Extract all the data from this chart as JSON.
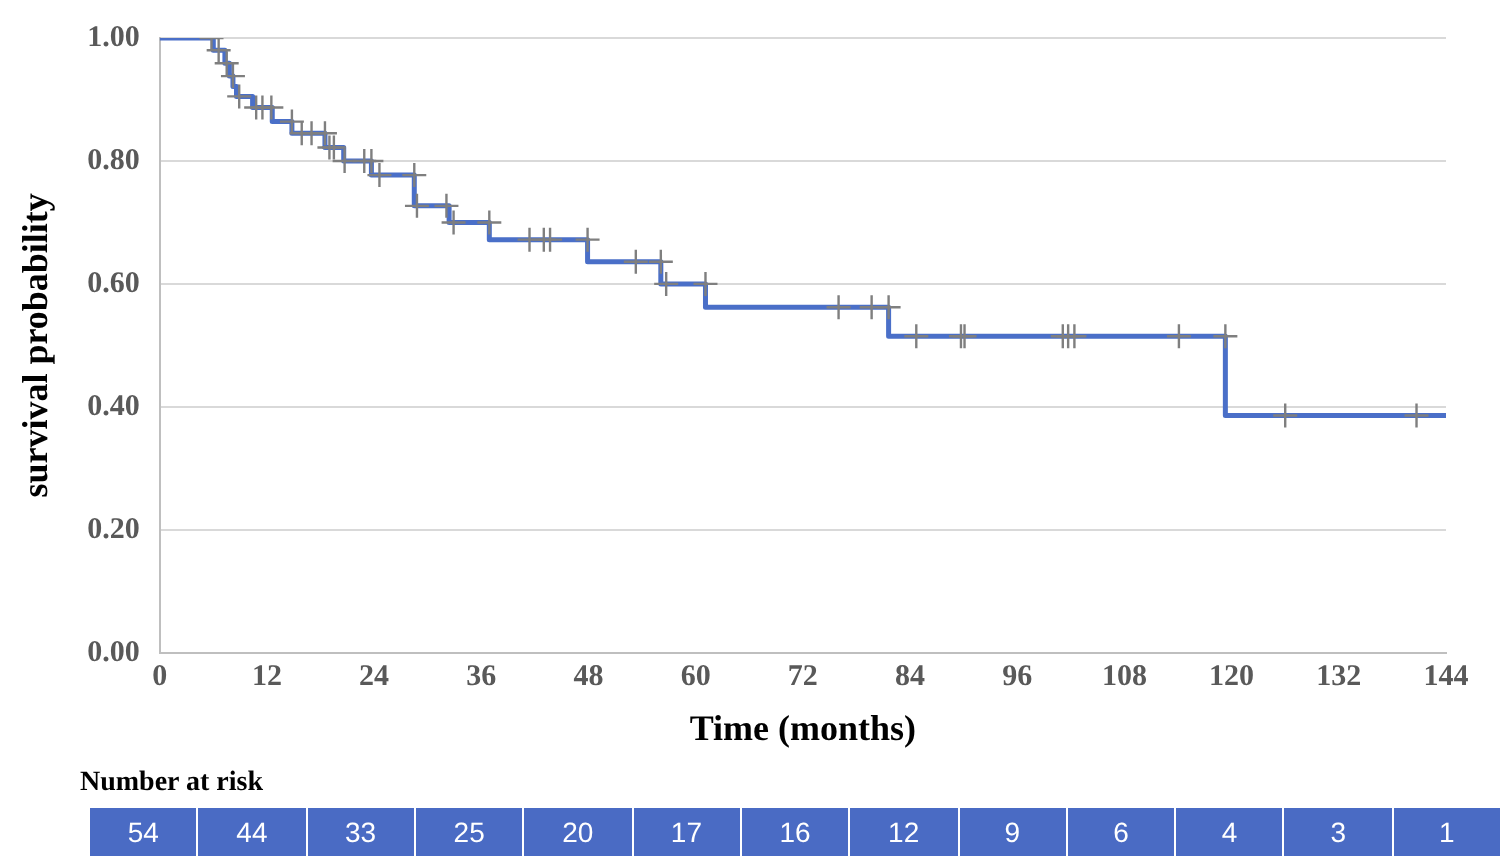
{
  "chart_data": [
    {
      "type": "step",
      "xlabel": "Time (months)",
      "ylabel": "survival probability",
      "xlim": [
        0,
        144
      ],
      "xticks": [
        0,
        12,
        24,
        36,
        48,
        60,
        72,
        84,
        96,
        108,
        120,
        132,
        144
      ],
      "ylim": [
        0,
        1
      ],
      "yticks": [
        {
          "value": 0,
          "label": "0.00"
        },
        {
          "value": 0.2,
          "label": "0.20"
        },
        {
          "value": 0.4,
          "label": "0.40"
        },
        {
          "value": 0.6,
          "label": "0.60"
        },
        {
          "value": 0.8,
          "label": "0.80"
        },
        {
          "value": 1,
          "label": "1.00"
        }
      ],
      "grid": "y",
      "legend": false,
      "series": [
        {
          "type": "step",
          "color": "#4a6fc8",
          "x": [
            0,
            6.0,
            7.3,
            7.8,
            8.2,
            8.6,
            10.4,
            12.6,
            14.8,
            18.5,
            20.6,
            23.7,
            28.5,
            32.4,
            36.9,
            47.9,
            56.1,
            61.1,
            81.6,
            119.3,
            144
          ],
          "values": [
            1.0,
            0.98,
            0.959,
            0.938,
            0.921,
            0.905,
            0.887,
            0.864,
            0.845,
            0.822,
            0.8,
            0.777,
            0.727,
            0.7,
            0.672,
            0.636,
            0.6,
            0.562,
            0.515,
            0.386,
            0.386
          ]
        },
        {
          "type": "scatter",
          "color": "#7f7f7f",
          "marker": "cross",
          "x": [
            5.8,
            6.6,
            7.5,
            8.2,
            8.9,
            10.8,
            11.5,
            12.5,
            14.8,
            15.9,
            17.0,
            18.5,
            19.0,
            19.5,
            20.7,
            22.9,
            23.7,
            24.6,
            28.5,
            28.8,
            32.1,
            32.9,
            36.9,
            41.4,
            43.0,
            43.7,
            47.9,
            53.3,
            56.1,
            56.7,
            61.1,
            76.0,
            79.7,
            81.6,
            84.7,
            89.7,
            90.1,
            101.1,
            101.7,
            102.4,
            114.1,
            119.3,
            126.0,
            140.7
          ],
          "values": [
            1.0,
            0.98,
            0.959,
            0.938,
            0.905,
            0.887,
            0.887,
            0.887,
            0.864,
            0.845,
            0.845,
            0.845,
            0.822,
            0.822,
            0.8,
            0.8,
            0.8,
            0.777,
            0.777,
            0.727,
            0.727,
            0.7,
            0.7,
            0.672,
            0.672,
            0.672,
            0.672,
            0.636,
            0.636,
            0.6,
            0.6,
            0.562,
            0.562,
            0.562,
            0.515,
            0.515,
            0.515,
            0.515,
            0.515,
            0.515,
            0.515,
            0.515,
            0.386,
            0.386
          ]
        }
      ]
    },
    {
      "type": "other",
      "title": "Number at risk",
      "color": "#4a6bc4",
      "categories": [
        null,
        null,
        null,
        null,
        null,
        null,
        null,
        null,
        null,
        null,
        null,
        null,
        null
      ],
      "values": [
        54,
        44,
        33,
        25,
        20,
        17,
        16,
        12,
        9,
        6,
        4,
        3,
        1
      ],
      "data_labels": true
    }
  ]
}
